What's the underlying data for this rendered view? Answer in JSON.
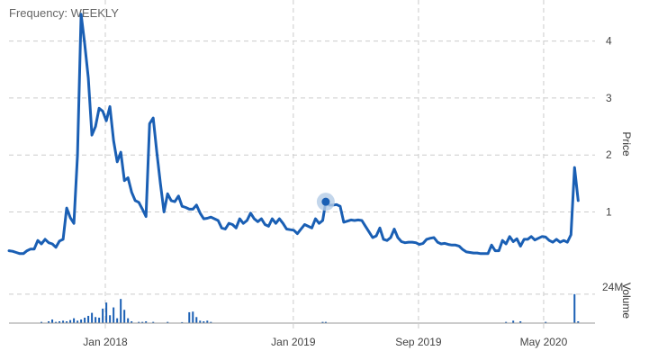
{
  "header": {
    "frequency_label": "Frequency: WEEKLY"
  },
  "chart_data": {
    "type": "line",
    "price_axis": {
      "label": "Price",
      "ticks": [
        1,
        2,
        3,
        4
      ],
      "ylim": [
        -0.95,
        4.72
      ]
    },
    "volume_axis": {
      "label": "Volume",
      "tick_label": "24M",
      "tick_value": 24,
      "ylim": [
        0,
        44
      ]
    },
    "x_axis": {
      "ticks": [
        {
          "label": "Jan 2018",
          "x": "2018-01-01"
        },
        {
          "label": "Jan 2019",
          "x": "2019-01-01"
        },
        {
          "label": "Sep 2019",
          "x": "2019-09-01"
        },
        {
          "label": "May 2020",
          "x": "2020-05-01"
        }
      ],
      "range": [
        "2017-06-28",
        "2020-07-24"
      ]
    },
    "colors": {
      "line": "#1a5fb4",
      "volume": "#1a5fb4",
      "grid": "#cccccc",
      "highlight": "#b4cce6"
    },
    "highlight": {
      "x": "2019-03-05",
      "y": 1.18
    },
    "series": [
      {
        "values": [
          [
            "2017-06-28",
            0.32
          ],
          [
            "2017-07-05",
            0.31
          ],
          [
            "2017-07-12",
            0.29
          ],
          [
            "2017-07-19",
            0.27
          ],
          [
            "2017-07-26",
            0.27
          ],
          [
            "2017-08-02",
            0.32
          ],
          [
            "2017-08-09",
            0.35
          ],
          [
            "2017-08-16",
            0.35
          ],
          [
            "2017-08-23",
            0.5
          ],
          [
            "2017-08-30",
            0.44
          ],
          [
            "2017-09-06",
            0.52
          ],
          [
            "2017-09-13",
            0.46
          ],
          [
            "2017-09-20",
            0.44
          ],
          [
            "2017-09-27",
            0.38
          ],
          [
            "2017-10-04",
            0.49
          ],
          [
            "2017-10-11",
            0.52
          ],
          [
            "2017-10-18",
            1.07
          ],
          [
            "2017-10-25",
            0.9
          ],
          [
            "2017-11-01",
            0.8
          ],
          [
            "2017-11-08",
            2.0
          ],
          [
            "2017-11-15",
            4.47
          ],
          [
            "2017-11-22",
            3.95
          ],
          [
            "2017-11-29",
            3.35
          ],
          [
            "2017-12-06",
            2.35
          ],
          [
            "2017-12-13",
            2.5
          ],
          [
            "2017-12-20",
            2.82
          ],
          [
            "2017-12-27",
            2.77
          ],
          [
            "2018-01-03",
            2.6
          ],
          [
            "2018-01-10",
            2.85
          ],
          [
            "2018-01-17",
            2.25
          ],
          [
            "2018-01-24",
            1.88
          ],
          [
            "2018-01-31",
            2.05
          ],
          [
            "2018-02-07",
            1.55
          ],
          [
            "2018-02-14",
            1.6
          ],
          [
            "2018-02-21",
            1.35
          ],
          [
            "2018-02-28",
            1.2
          ],
          [
            "2018-03-07",
            1.17
          ],
          [
            "2018-03-14",
            1.05
          ],
          [
            "2018-03-21",
            0.92
          ],
          [
            "2018-03-28",
            2.55
          ],
          [
            "2018-04-04",
            2.65
          ],
          [
            "2018-04-11",
            2.05
          ],
          [
            "2018-04-18",
            1.5
          ],
          [
            "2018-04-25",
            1.0
          ],
          [
            "2018-05-02",
            1.32
          ],
          [
            "2018-05-09",
            1.2
          ],
          [
            "2018-05-16",
            1.18
          ],
          [
            "2018-05-23",
            1.28
          ],
          [
            "2018-05-30",
            1.1
          ],
          [
            "2018-06-06",
            1.08
          ],
          [
            "2018-06-13",
            1.05
          ],
          [
            "2018-06-20",
            1.05
          ],
          [
            "2018-06-27",
            1.12
          ],
          [
            "2018-07-04",
            0.98
          ],
          [
            "2018-07-11",
            0.88
          ],
          [
            "2018-07-18",
            0.89
          ],
          [
            "2018-07-25",
            0.91
          ],
          [
            "2018-08-01",
            0.88
          ],
          [
            "2018-08-08",
            0.85
          ],
          [
            "2018-08-15",
            0.72
          ],
          [
            "2018-08-22",
            0.7
          ],
          [
            "2018-08-29",
            0.8
          ],
          [
            "2018-09-05",
            0.78
          ],
          [
            "2018-09-12",
            0.72
          ],
          [
            "2018-09-19",
            0.88
          ],
          [
            "2018-09-26",
            0.8
          ],
          [
            "2018-10-03",
            0.85
          ],
          [
            "2018-10-10",
            0.98
          ],
          [
            "2018-10-17",
            0.88
          ],
          [
            "2018-10-24",
            0.83
          ],
          [
            "2018-10-31",
            0.88
          ],
          [
            "2018-11-07",
            0.78
          ],
          [
            "2018-11-14",
            0.75
          ],
          [
            "2018-11-21",
            0.88
          ],
          [
            "2018-11-28",
            0.8
          ],
          [
            "2018-12-05",
            0.88
          ],
          [
            "2018-12-12",
            0.8
          ],
          [
            "2018-12-19",
            0.7
          ],
          [
            "2018-12-26",
            0.69
          ],
          [
            "2019-01-02",
            0.68
          ],
          [
            "2019-01-09",
            0.62
          ],
          [
            "2019-01-16",
            0.7
          ],
          [
            "2019-01-23",
            0.78
          ],
          [
            "2019-01-30",
            0.75
          ],
          [
            "2019-02-06",
            0.72
          ],
          [
            "2019-02-13",
            0.88
          ],
          [
            "2019-02-20",
            0.8
          ],
          [
            "2019-02-27",
            0.85
          ],
          [
            "2019-03-05",
            1.18
          ],
          [
            "2019-03-12",
            1.12
          ],
          [
            "2019-03-19",
            1.12
          ],
          [
            "2019-03-26",
            1.13
          ],
          [
            "2019-04-02",
            1.1
          ],
          [
            "2019-04-09",
            0.82
          ],
          [
            "2019-04-16",
            0.84
          ],
          [
            "2019-04-23",
            0.86
          ],
          [
            "2019-04-30",
            0.85
          ],
          [
            "2019-05-07",
            0.86
          ],
          [
            "2019-05-14",
            0.85
          ],
          [
            "2019-05-21",
            0.75
          ],
          [
            "2019-05-28",
            0.65
          ],
          [
            "2019-06-04",
            0.55
          ],
          [
            "2019-06-11",
            0.58
          ],
          [
            "2019-06-18",
            0.72
          ],
          [
            "2019-06-25",
            0.52
          ],
          [
            "2019-07-02",
            0.5
          ],
          [
            "2019-07-09",
            0.55
          ],
          [
            "2019-07-16",
            0.7
          ],
          [
            "2019-07-23",
            0.55
          ],
          [
            "2019-07-30",
            0.48
          ],
          [
            "2019-08-06",
            0.46
          ],
          [
            "2019-08-13",
            0.47
          ],
          [
            "2019-08-20",
            0.47
          ],
          [
            "2019-08-27",
            0.46
          ],
          [
            "2019-09-03",
            0.43
          ],
          [
            "2019-09-10",
            0.45
          ],
          [
            "2019-09-17",
            0.52
          ],
          [
            "2019-09-24",
            0.54
          ],
          [
            "2019-10-01",
            0.55
          ],
          [
            "2019-10-08",
            0.47
          ],
          [
            "2019-10-15",
            0.44
          ],
          [
            "2019-10-22",
            0.45
          ],
          [
            "2019-10-29",
            0.43
          ],
          [
            "2019-11-05",
            0.42
          ],
          [
            "2019-11-12",
            0.42
          ],
          [
            "2019-11-19",
            0.4
          ],
          [
            "2019-11-26",
            0.34
          ],
          [
            "2019-12-03",
            0.3
          ],
          [
            "2019-12-10",
            0.29
          ],
          [
            "2019-12-17",
            0.28
          ],
          [
            "2019-12-24",
            0.28
          ],
          [
            "2019-12-31",
            0.27
          ],
          [
            "2020-01-07",
            0.27
          ],
          [
            "2020-01-14",
            0.27
          ],
          [
            "2020-01-21",
            0.42
          ],
          [
            "2020-01-28",
            0.32
          ],
          [
            "2020-02-04",
            0.32
          ],
          [
            "2020-02-11",
            0.5
          ],
          [
            "2020-02-18",
            0.44
          ],
          [
            "2020-02-25",
            0.57
          ],
          [
            "2020-03-03",
            0.48
          ],
          [
            "2020-03-10",
            0.53
          ],
          [
            "2020-03-17",
            0.4
          ],
          [
            "2020-03-24",
            0.52
          ],
          [
            "2020-03-31",
            0.52
          ],
          [
            "2020-04-07",
            0.57
          ],
          [
            "2020-04-14",
            0.51
          ],
          [
            "2020-04-21",
            0.54
          ],
          [
            "2020-04-28",
            0.57
          ],
          [
            "2020-05-05",
            0.56
          ],
          [
            "2020-05-12",
            0.5
          ],
          [
            "2020-05-19",
            0.47
          ],
          [
            "2020-05-26",
            0.52
          ],
          [
            "2020-06-02",
            0.47
          ],
          [
            "2020-06-09",
            0.5
          ],
          [
            "2020-06-16",
            0.47
          ],
          [
            "2020-06-23",
            0.6
          ],
          [
            "2020-06-30",
            1.78
          ],
          [
            "2020-07-07",
            1.2
          ]
        ]
      }
    ],
    "volume": [
      [
        "2017-08-30",
        1.0
      ],
      [
        "2017-09-13",
        1.5
      ],
      [
        "2017-09-20",
        3.0
      ],
      [
        "2017-09-27",
        1.0
      ],
      [
        "2017-10-04",
        1.5
      ],
      [
        "2017-10-11",
        2.0
      ],
      [
        "2017-10-18",
        1.5
      ],
      [
        "2017-10-25",
        2.5
      ],
      [
        "2017-11-01",
        4.0
      ],
      [
        "2017-11-08",
        2.0
      ],
      [
        "2017-11-15",
        3.0
      ],
      [
        "2017-11-22",
        4.5
      ],
      [
        "2017-11-29",
        6.0
      ],
      [
        "2017-12-06",
        8.5
      ],
      [
        "2017-12-13",
        5.0
      ],
      [
        "2017-12-20",
        4.5
      ],
      [
        "2017-12-27",
        12.0
      ],
      [
        "2018-01-03",
        17.0
      ],
      [
        "2018-01-10",
        6.5
      ],
      [
        "2018-01-17",
        13.0
      ],
      [
        "2018-01-24",
        4.0
      ],
      [
        "2018-01-31",
        20.0
      ],
      [
        "2018-02-07",
        11.0
      ],
      [
        "2018-02-14",
        4.0
      ],
      [
        "2018-02-21",
        1.5
      ],
      [
        "2018-03-07",
        1.0
      ],
      [
        "2018-03-14",
        1.0
      ],
      [
        "2018-03-21",
        1.5
      ],
      [
        "2018-04-04",
        1.0
      ],
      [
        "2018-05-02",
        1.0
      ],
      [
        "2018-05-30",
        0.8
      ],
      [
        "2018-06-13",
        9.0
      ],
      [
        "2018-06-20",
        9.5
      ],
      [
        "2018-06-27",
        5.0
      ],
      [
        "2018-07-04",
        2.0
      ],
      [
        "2018-07-11",
        1.5
      ],
      [
        "2018-07-18",
        2.0
      ],
      [
        "2018-07-25",
        1.0
      ],
      [
        "2019-02-27",
        1.0
      ],
      [
        "2019-03-05",
        1.0
      ],
      [
        "2020-02-18",
        1.0
      ],
      [
        "2020-03-03",
        2.0
      ],
      [
        "2020-03-17",
        1.5
      ],
      [
        "2020-05-05",
        1.0
      ],
      [
        "2020-06-30",
        24.0
      ],
      [
        "2020-07-07",
        1.5
      ]
    ]
  }
}
